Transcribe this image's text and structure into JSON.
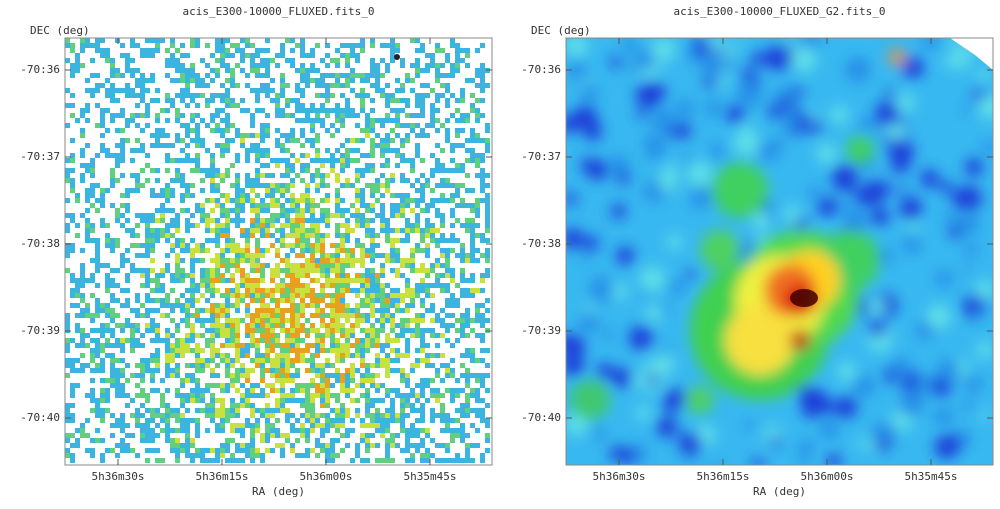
{
  "panels": [
    {
      "title": "acis_E300-10000_FLUXED.fits_0",
      "y_label": "DEC (deg)",
      "x_label": "RA (deg)",
      "yticks": [
        "-70:36",
        "-70:37",
        "-70:38",
        "-70:39",
        "-70:40"
      ],
      "xticks": [
        "5h36m30s",
        "5h36m15s",
        "5h36m00s",
        "5h35m45s"
      ]
    },
    {
      "title": "acis_E300-10000_FLUXED_G2.fits_0",
      "y_label": "DEC (deg)",
      "x_label": "RA (deg)",
      "yticks": [
        "-70:36",
        "-70:37",
        "-70:38",
        "-70:39",
        "-70:40"
      ],
      "xticks": [
        "5h36m30s",
        "5h36m15s",
        "5h36m00s",
        "5h35m45s"
      ]
    }
  ]
}
